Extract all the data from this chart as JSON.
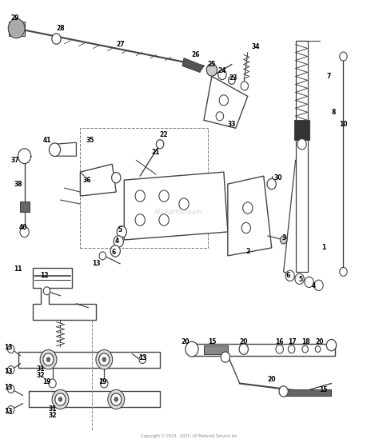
{
  "bg_color": "#ffffff",
  "line_color": "#444444",
  "label_color": "#000000",
  "watermark": "All-PartStream",
  "footer": "Copyright © 2024 - 2025. All Material Service Inc.",
  "fig_width": 4.74,
  "fig_height": 5.54,
  "dpi": 100
}
